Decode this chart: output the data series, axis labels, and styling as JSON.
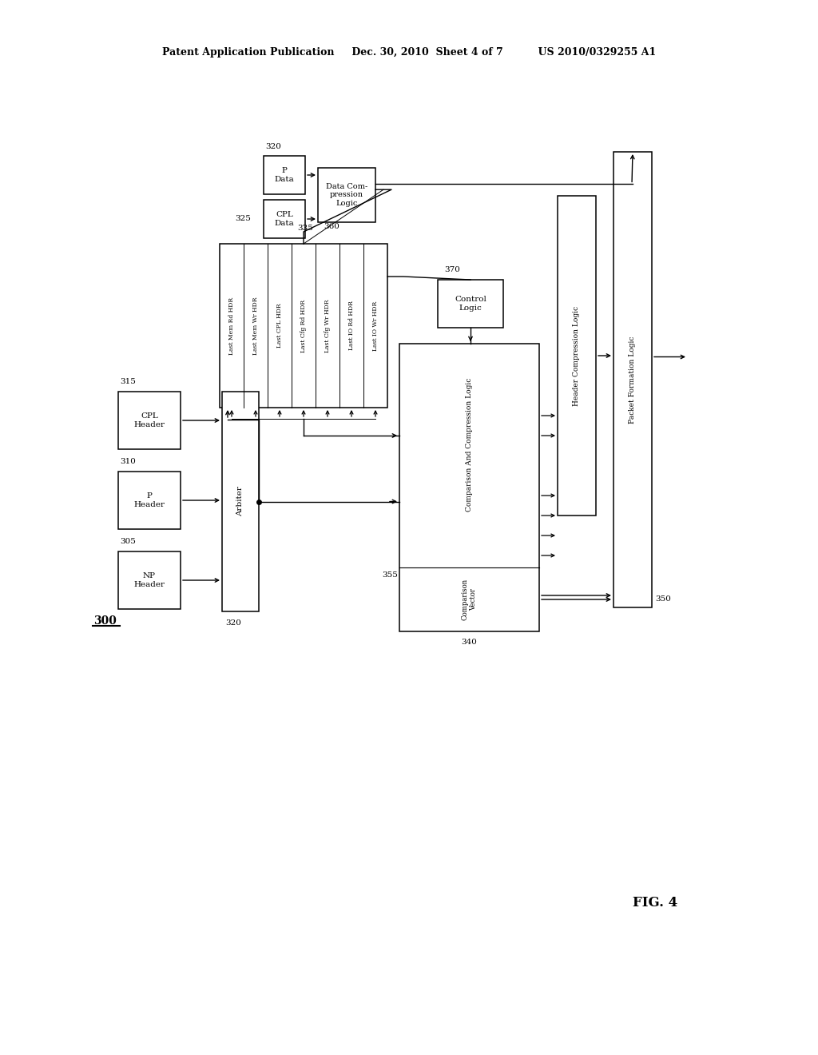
{
  "bg_color": "#ffffff",
  "header": "Patent Application Publication     Dec. 30, 2010  Sheet 4 of 7          US 2010/0329255 A1",
  "fig_label": "FIG. 4",
  "hdr_rows": [
    "Last Mem Rd HDR",
    "Last Mem Wr HDR",
    "Last CPL HDR",
    "Last Cfg Rd HDR",
    "Last Cfg Wr HDR",
    "Last IO Rd HDR",
    "Last IO Wr HDR"
  ],
  "layout": {
    "p_data": [
      330,
      195,
      52,
      48
    ],
    "cpl_data": [
      330,
      250,
      52,
      48
    ],
    "data_comp": [
      398,
      210,
      72,
      68
    ],
    "hdr_store": [
      275,
      305,
      210,
      205
    ],
    "ctrl_logic": [
      548,
      350,
      82,
      60
    ],
    "comp_logic": [
      500,
      430,
      175,
      360
    ],
    "hc_logic": [
      698,
      245,
      48,
      400
    ],
    "pf_logic": [
      768,
      190,
      48,
      570
    ],
    "cpl_header": [
      148,
      490,
      78,
      72
    ],
    "p_header": [
      148,
      590,
      78,
      72
    ],
    "np_header": [
      148,
      690,
      78,
      72
    ],
    "arbiter": [
      278,
      490,
      46,
      275
    ]
  }
}
